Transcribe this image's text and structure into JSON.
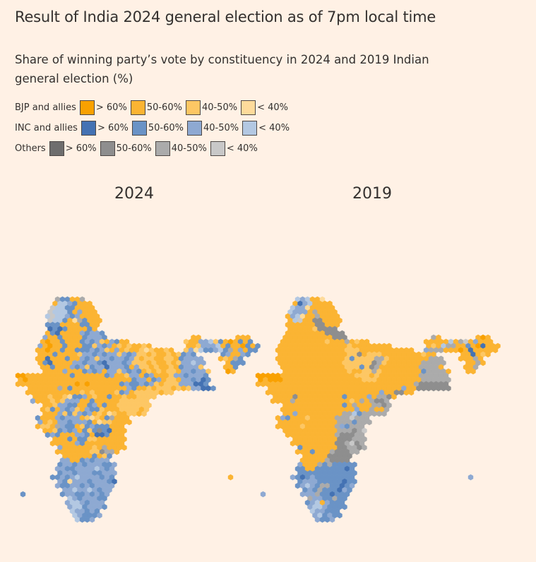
{
  "title": "Result of India 2024 general election as of 7pm local time",
  "subtitle": "Share of winning party’s vote by constituency in 2024 and 2019 Indian general election (%)",
  "chart_data": {
    "type": "heatmap",
    "subtype": "hexagon cartogram",
    "legend": [
      {
        "name": "BJP and allies",
        "bins": [
          "> 60%",
          "50-60%",
          "40-50%",
          "< 40%"
        ],
        "colors": [
          "#f9a100",
          "#fbb433",
          "#fdc764",
          "#fedb9b"
        ]
      },
      {
        "name": "INC and allies",
        "bins": [
          "> 60%",
          "50-60%",
          "40-50%",
          "< 40%"
        ],
        "colors": [
          "#4472b3",
          "#6a93c6",
          "#8ea9d2",
          "#b3c8e2"
        ]
      },
      {
        "name": "Others",
        "bins": [
          "> 60%",
          "50-60%",
          "40-50%",
          "< 40%"
        ],
        "colors": [
          "#6e6e6e",
          "#8e8e8e",
          "#ababab",
          "#c8c8c8"
        ]
      }
    ],
    "maps": [
      {
        "year": "2024",
        "rows": [
          "........kffbbk",
          ".......bhhgfbbb",
          ".......lhhffbbbb",
          "......lhhhfbgbbb",
          "......hlhhgfgbbbb",
          "......lhhfbdkfbbb",
          "......fffbbbbffbb",
          "......efefbbbbfb",
          "......bfebbbbgfggf",
          ".....gbbfbbbbfgggf.................bb.......bbb",
          ".....babbfbbbfgfgcbgfbb...........cbbgghcfbabfbf",
          "....gbabbfbbbffcgfgbcbcbbcb.......bbcggghbfbbafbf",
          "....bbabbfbbfffgfgcbgbcbbcdcbbcb..cgdhffghfkbgbff",
          "....bbbfbbbbcggfgfggcgfgccbcbbcbcfgf.....fgbbgf",
          "....bbebbbfbbgfgcggfggfgcbccbbccbfgggg...bcbkf",
          "....bfebbbbggfggfegggfgcccbcbbcbcgghgg....bfff",
          ".....bbfbbbgfgcfggegggfbgccbcbbcbfgggc....bbf",
          ".....bbbbgbbbfgfgbggcgfgfbcbcbccbggfggc...ab",
          "aabbbbbbbbbfbbbbbbfgbbcggbfgbbbcggfgggf",
          "babbbbbbbbbbbbbbbbbbbbbfggbfgbccbggfgef",
          "bbbbbbbbbbbbababbbbbbfgffgfgcbcccgggeef",
          "..bbbbbbkbfbbbbbbbbbbbgfbbcbcccbcbcggeef",
          "..bbbbbbbbbbbcbcbbbbcfgbcccccbcc",
          "...bbbcbbcdffgbcbbfbbcbbcccc",
          "...gbbbcbcgggbbfbbbbbcccccc",
          ".....bbcggffbbfgbfbbccccccc",
          ".....bcfbgfgcbgffcbbbccccbc",
          ".....bbbgcfcgfgbcbdcbbccbc",
          "....fbbbgfgggbcdcbfkbbb",
          "....gbcbggfgggfbdccbbbb",
          "....bccbkgffbcfgfffbbb",
          ".....bbcfgfgbfcfjfebbb",
          "......fgfbbbggfbeefbbb",
          ".......bbbfbffccbbbbbb",
          ".......bbbbbgfbbbbbbbb",
          "........gbbbbbbcbkbbbb",
          "........bbbbbbbccjkkb",
          ".........bbbbbbfbcf",
          ".........ggbbfgfggg",
          "........fggfgfgggffg",
          "........ggffgggghgfg",
          "........fggfgggffggg",
          ".......ffgfghggggfgf.......................b",
          "........gfdgggfgggfe",
          "........gffggfgfgggg",
          ".........gghgghgfgg",
          ".f.......fggffgfgfg",
          "..........hgfgggff",
          "..........ghhgfggg",
          "..........ghhfgggf",
          "...........hggfgf",
          "...........hgfffg",
          "............hffg"
        ]
      },
      {
        "year": "2019",
        "rows": [
          "........hghbbd",
          ".......beghbbbb",
          ".......hggdbbbbb",
          "......hgggbkbbbb",
          "......bghdbbkbbbb",
          "......bhlbbjjbbbb",
          "......bbbbbbjjbbb",
          "......bbbbbcjjjj",
          "......bbbbbbbbjjjj",
          ".....bbbbbbbbbbjjj.................kb.......bab",
          ".....bbbbbbbbbcbbbkbcbb...........bbbbbhbklbgbbb",
          "....bbbbbbbbbbbbbbcbbbbbbbb.......bcbhkkbbfbaebbb",
          "....bbbbbbbbbbbbbbcccbbbbbbbbbbb..gkkkbbbabebbbbb",
          "....bbbbbbbbbbbbbbccjbcccbbbbbbbbcbb.....bbebcb",
          "....bbbbbbbbbbbbbbcfcccckkcbbbbbbbbkkk...bbbkb",
          "....bbbbbbbbbbbbbccccccjkcbbbbbbbkkkkk....bbkb",
          ".....bbbbbbbbbbbbbcccfcjkbbbbbbbbkkkkb....bbk",
          ".....bbbbbbbbbbbbbcbbcckcbbbbbbbbfkkkkb...bb",
          "aaaaabbbbbbbbbbbbbbbcccbcbbbbbbbbkkkkkk",
          "abaaabbbbbbbbbbbbbbbbcccbbbbbbbbbkkkkkk",
          "bbbbbbbbbbbbbbbbbbbbbbbbbbbbbbbbkjjjjjj",
          "..bbbbbbbbbbbbbbbbbbbbbbbbbbbgbbjjjjjjj",
          "..bbbbbbbbbbbbbbbbbbbbbbbgbbjjbb",
          "...bbbbjbbbbbbbbbfbbbbgbkkjb",
          "...bbbbkbbbbbbbbbbbcbkbkjjk",
          ".....bbbbbbbbbbbbfbkbbbkkjk",
          ".....bbbbbbbbbbbbbbbgbbkbbk",
          ".....bbgbbbbbbbbbkkhfkkkkk",
          "....bgfbbbcbbbbbkkklkkk",
          "....bbbbbbbbbbbbkkkfkkk",
          "....bbbbbcbbbbbbkgfkkk",
          ".....bbbbbbbbbbbkkkjkl",
          "......bbbbbbbbbbkjjjkk",
          ".......bbbbbbbbbjjjkkk",
          ".......bbbbbbbbbjjkljk",
          "........fbbbbbbbjjkkjk",
          "........bbbfbbbkjjjkk",
          ".........bbbbbjjjjj",
          ".........bbbbbkjjjj",
          "........gbbbkfkfffff",
          "........ffbbffffffef",
          "........ffffffffffff",
          ".......gfefgffffffff.......................g",
          "........fgggfffffeff",
          "........fghgfkkffefg",
          ".........fgfkfffegf",
          ".g.......gggkffefff",
          "..........kggffkff",
          "..........fghbgfff",
          "..........ghhgffff",
          "...........hggfff",
          "...........ghfgff",
          "............gffg"
        ]
      }
    ]
  }
}
